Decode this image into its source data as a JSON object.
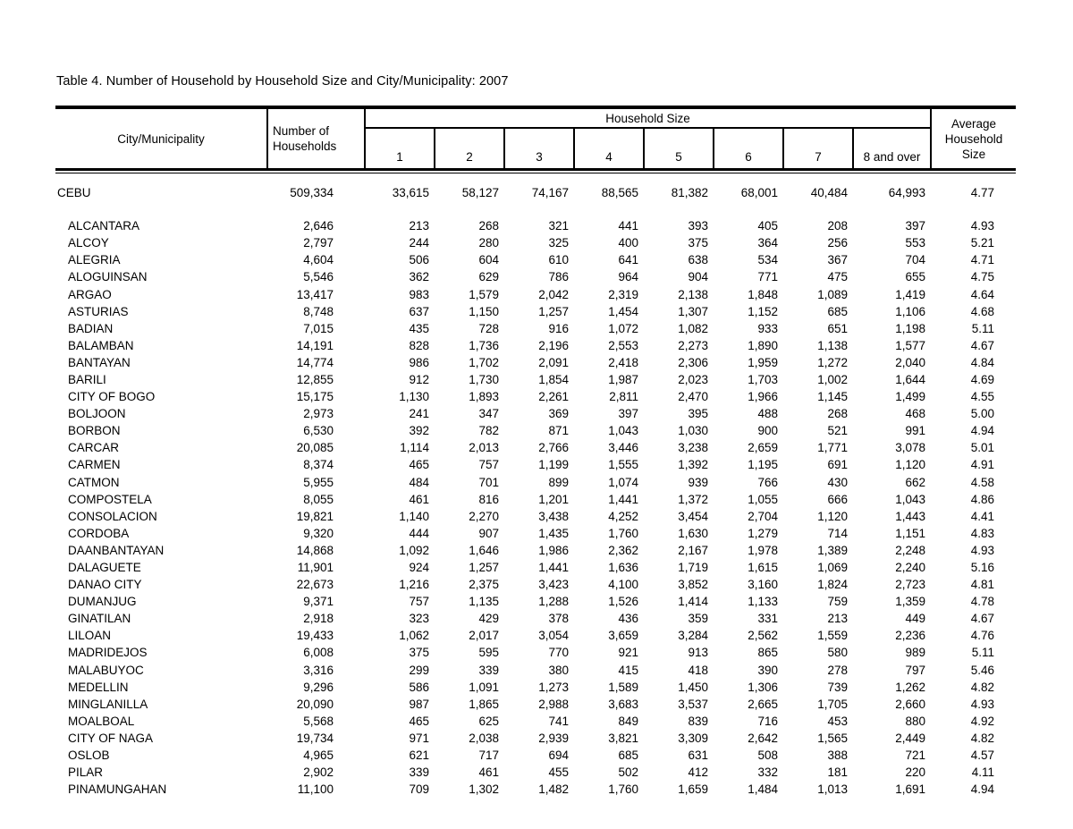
{
  "page": {
    "title": "Table 4. Number of Household by Household Size and City/Municipality: 2007"
  },
  "table": {
    "header": {
      "city": "City/Municipality",
      "households_line1": "Number of",
      "households_line2": "Households",
      "group": "Household Size",
      "sizes": [
        "1",
        "2",
        "3",
        "4",
        "5",
        "6",
        "7",
        "8 and over"
      ],
      "average_line1": "Average",
      "average_line2": "Household",
      "average_line3": "Size"
    },
    "total_row": {
      "name": "CEBU",
      "households": "509,334",
      "sizes": [
        "33,615",
        "58,127",
        "74,167",
        "88,565",
        "81,382",
        "68,001",
        "40,484",
        "64,993"
      ],
      "average": "4.77"
    },
    "rows": [
      {
        "name": "ALCANTARA",
        "households": "2,646",
        "sizes": [
          "213",
          "268",
          "321",
          "441",
          "393",
          "405",
          "208",
          "397"
        ],
        "average": "4.93"
      },
      {
        "name": "ALCOY",
        "households": "2,797",
        "sizes": [
          "244",
          "280",
          "325",
          "400",
          "375",
          "364",
          "256",
          "553"
        ],
        "average": "5.21"
      },
      {
        "name": "ALEGRIA",
        "households": "4,604",
        "sizes": [
          "506",
          "604",
          "610",
          "641",
          "638",
          "534",
          "367",
          "704"
        ],
        "average": "4.71"
      },
      {
        "name": "ALOGUINSAN",
        "households": "5,546",
        "sizes": [
          "362",
          "629",
          "786",
          "964",
          "904",
          "771",
          "475",
          "655"
        ],
        "average": "4.75"
      },
      {
        "name": "ARGAO",
        "households": "13,417",
        "sizes": [
          "983",
          "1,579",
          "2,042",
          "2,319",
          "2,138",
          "1,848",
          "1,089",
          "1,419"
        ],
        "average": "4.64"
      },
      {
        "name": "ASTURIAS",
        "households": "8,748",
        "sizes": [
          "637",
          "1,150",
          "1,257",
          "1,454",
          "1,307",
          "1,152",
          "685",
          "1,106"
        ],
        "average": "4.68"
      },
      {
        "name": "BADIAN",
        "households": "7,015",
        "sizes": [
          "435",
          "728",
          "916",
          "1,072",
          "1,082",
          "933",
          "651",
          "1,198"
        ],
        "average": "5.11"
      },
      {
        "name": "BALAMBAN",
        "households": "14,191",
        "sizes": [
          "828",
          "1,736",
          "2,196",
          "2,553",
          "2,273",
          "1,890",
          "1,138",
          "1,577"
        ],
        "average": "4.67"
      },
      {
        "name": "BANTAYAN",
        "households": "14,774",
        "sizes": [
          "986",
          "1,702",
          "2,091",
          "2,418",
          "2,306",
          "1,959",
          "1,272",
          "2,040"
        ],
        "average": "4.84"
      },
      {
        "name": "BARILI",
        "households": "12,855",
        "sizes": [
          "912",
          "1,730",
          "1,854",
          "1,987",
          "2,023",
          "1,703",
          "1,002",
          "1,644"
        ],
        "average": "4.69"
      },
      {
        "name": "CITY OF BOGO",
        "households": "15,175",
        "sizes": [
          "1,130",
          "1,893",
          "2,261",
          "2,811",
          "2,470",
          "1,966",
          "1,145",
          "1,499"
        ],
        "average": "4.55"
      },
      {
        "name": "BOLJOON",
        "households": "2,973",
        "sizes": [
          "241",
          "347",
          "369",
          "397",
          "395",
          "488",
          "268",
          "468"
        ],
        "average": "5.00"
      },
      {
        "name": "BORBON",
        "households": "6,530",
        "sizes": [
          "392",
          "782",
          "871",
          "1,043",
          "1,030",
          "900",
          "521",
          "991"
        ],
        "average": "4.94"
      },
      {
        "name": "CARCAR",
        "households": "20,085",
        "sizes": [
          "1,114",
          "2,013",
          "2,766",
          "3,446",
          "3,238",
          "2,659",
          "1,771",
          "3,078"
        ],
        "average": "5.01"
      },
      {
        "name": "CARMEN",
        "households": "8,374",
        "sizes": [
          "465",
          "757",
          "1,199",
          "1,555",
          "1,392",
          "1,195",
          "691",
          "1,120"
        ],
        "average": "4.91"
      },
      {
        "name": "CATMON",
        "households": "5,955",
        "sizes": [
          "484",
          "701",
          "899",
          "1,074",
          "939",
          "766",
          "430",
          "662"
        ],
        "average": "4.58"
      },
      {
        "name": "COMPOSTELA",
        "households": "8,055",
        "sizes": [
          "461",
          "816",
          "1,201",
          "1,441",
          "1,372",
          "1,055",
          "666",
          "1,043"
        ],
        "average": "4.86"
      },
      {
        "name": "CONSOLACION",
        "households": "19,821",
        "sizes": [
          "1,140",
          "2,270",
          "3,438",
          "4,252",
          "3,454",
          "2,704",
          "1,120",
          "1,443"
        ],
        "average": "4.41"
      },
      {
        "name": "CORDOBA",
        "households": "9,320",
        "sizes": [
          "444",
          "907",
          "1,435",
          "1,760",
          "1,630",
          "1,279",
          "714",
          "1,151"
        ],
        "average": "4.83"
      },
      {
        "name": "DAANBANTAYAN",
        "households": "14,868",
        "sizes": [
          "1,092",
          "1,646",
          "1,986",
          "2,362",
          "2,167",
          "1,978",
          "1,389",
          "2,248"
        ],
        "average": "4.93"
      },
      {
        "name": "DALAGUETE",
        "households": "11,901",
        "sizes": [
          "924",
          "1,257",
          "1,441",
          "1,636",
          "1,719",
          "1,615",
          "1,069",
          "2,240"
        ],
        "average": "5.16"
      },
      {
        "name": "DANAO CITY",
        "households": "22,673",
        "sizes": [
          "1,216",
          "2,375",
          "3,423",
          "4,100",
          "3,852",
          "3,160",
          "1,824",
          "2,723"
        ],
        "average": "4.81"
      },
      {
        "name": "DUMANJUG",
        "households": "9,371",
        "sizes": [
          "757",
          "1,135",
          "1,288",
          "1,526",
          "1,414",
          "1,133",
          "759",
          "1,359"
        ],
        "average": "4.78"
      },
      {
        "name": "GINATILAN",
        "households": "2,918",
        "sizes": [
          "323",
          "429",
          "378",
          "436",
          "359",
          "331",
          "213",
          "449"
        ],
        "average": "4.67"
      },
      {
        "name": "LILOAN",
        "households": "19,433",
        "sizes": [
          "1,062",
          "2,017",
          "3,054",
          "3,659",
          "3,284",
          "2,562",
          "1,559",
          "2,236"
        ],
        "average": "4.76"
      },
      {
        "name": "MADRIDEJOS",
        "households": "6,008",
        "sizes": [
          "375",
          "595",
          "770",
          "921",
          "913",
          "865",
          "580",
          "989"
        ],
        "average": "5.11"
      },
      {
        "name": "MALABUYOC",
        "households": "3,316",
        "sizes": [
          "299",
          "339",
          "380",
          "415",
          "418",
          "390",
          "278",
          "797"
        ],
        "average": "5.46"
      },
      {
        "name": "MEDELLIN",
        "households": "9,296",
        "sizes": [
          "586",
          "1,091",
          "1,273",
          "1,589",
          "1,450",
          "1,306",
          "739",
          "1,262"
        ],
        "average": "4.82"
      },
      {
        "name": "MINGLANILLA",
        "households": "20,090",
        "sizes": [
          "987",
          "1,865",
          "2,988",
          "3,683",
          "3,537",
          "2,665",
          "1,705",
          "2,660"
        ],
        "average": "4.93"
      },
      {
        "name": "MOALBOAL",
        "households": "5,568",
        "sizes": [
          "465",
          "625",
          "741",
          "849",
          "839",
          "716",
          "453",
          "880"
        ],
        "average": "4.92"
      },
      {
        "name": "CITY OF NAGA",
        "households": "19,734",
        "sizes": [
          "971",
          "2,038",
          "2,939",
          "3,821",
          "3,309",
          "2,642",
          "1,565",
          "2,449"
        ],
        "average": "4.82"
      },
      {
        "name": "OSLOB",
        "households": "4,965",
        "sizes": [
          "621",
          "717",
          "694",
          "685",
          "631",
          "508",
          "388",
          "721"
        ],
        "average": "4.57"
      },
      {
        "name": "PILAR",
        "households": "2,902",
        "sizes": [
          "339",
          "461",
          "455",
          "502",
          "412",
          "332",
          "181",
          "220"
        ],
        "average": "4.11"
      },
      {
        "name": "PINAMUNGAHAN",
        "households": "11,100",
        "sizes": [
          "709",
          "1,302",
          "1,482",
          "1,760",
          "1,659",
          "1,484",
          "1,013",
          "1,691"
        ],
        "average": "4.94"
      }
    ]
  }
}
